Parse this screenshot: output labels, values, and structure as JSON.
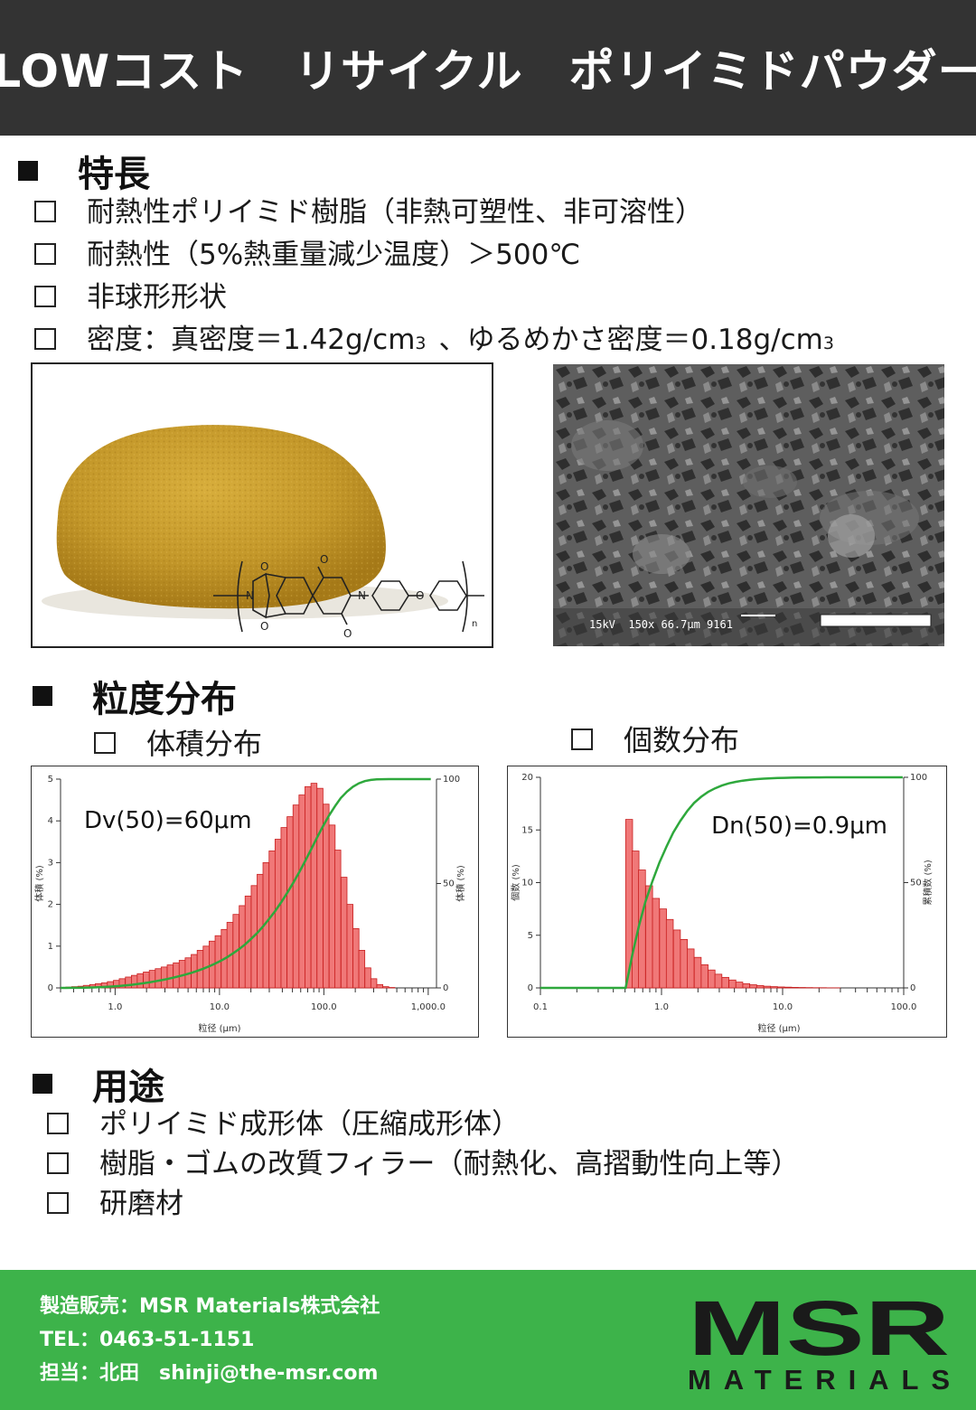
{
  "header": {
    "title": "LOWコスト　リサイクル　ポリイミドパウダー"
  },
  "features": {
    "heading": "特長",
    "items": [
      "耐熱性ポリイミド樹脂（非熱可塑性、非可溶性）",
      "耐熱性（5%熱重量減少温度）＞500℃",
      "非球形形状"
    ],
    "density_prefix": "密度：真密度＝1.42g/cm",
    "density_mid": "、ゆるめかさ密度＝0.18g/cm",
    "density_sup": "3"
  },
  "images": {
    "structure": {
      "subscript": "n",
      "atoms": {
        "n": "N",
        "o": "O"
      }
    },
    "sem": {
      "caption": "15kV  150x 66.7μm 9161"
    }
  },
  "distribution": {
    "heading": "粒度分布",
    "volume_label": "体積分布",
    "number_label": "個数分布"
  },
  "chart_data": [
    {
      "type": "bar",
      "annotation": "Dv(50)=60μm",
      "xlabel": "粒径 (μm)",
      "ylabel": "体積 (%)",
      "y2label": "体積 (%)",
      "xscale": "log",
      "xlim": [
        0.3,
        1200
      ],
      "ylim": [
        0,
        5
      ],
      "y2lim": [
        0,
        100
      ],
      "x_ticks": [
        "1.0",
        "10.0",
        "100.0",
        "1,000.0"
      ],
      "y_ticks": [
        "0",
        "1",
        "2",
        "3",
        "4",
        "5"
      ],
      "y2_ticks": [
        "0",
        "50",
        "100"
      ],
      "x": [
        0.36,
        0.41,
        0.47,
        0.53,
        0.61,
        0.69,
        0.79,
        0.9,
        1.03,
        1.17,
        1.34,
        1.53,
        1.74,
        1.99,
        2.27,
        2.59,
        2.95,
        3.37,
        3.85,
        4.39,
        5.01,
        5.72,
        6.53,
        7.45,
        8.5,
        9.7,
        11.1,
        12.6,
        14.4,
        16.5,
        18.8,
        21.5,
        24.5,
        27.9,
        31.9,
        36.4,
        41.5,
        47.4,
        54.1,
        61.7,
        70.4,
        80.4,
        91.8,
        105,
        120,
        136,
        156,
        178,
        203,
        231,
        264,
        301,
        344,
        392,
        448,
        511,
        584,
        666,
        760,
        868,
        990
      ],
      "values": [
        0.02,
        0.03,
        0.04,
        0.06,
        0.08,
        0.1,
        0.12,
        0.15,
        0.18,
        0.22,
        0.26,
        0.3,
        0.34,
        0.38,
        0.42,
        0.46,
        0.5,
        0.55,
        0.6,
        0.66,
        0.72,
        0.8,
        0.9,
        1.0,
        1.12,
        1.25,
        1.4,
        1.57,
        1.76,
        1.97,
        2.2,
        2.45,
        2.72,
        3.0,
        3.28,
        3.56,
        3.84,
        4.1,
        4.38,
        4.62,
        4.82,
        4.9,
        4.78,
        4.4,
        3.9,
        3.3,
        2.65,
        2.0,
        1.42,
        0.9,
        0.48,
        0.22,
        0.08,
        0.03,
        0.01,
        0.0,
        0.0,
        0.0,
        0.0,
        0.0,
        0.0
      ]
    },
    {
      "type": "bar",
      "annotation": "Dn(50)=0.9μm",
      "xlabel": "粒径 (μm)",
      "ylabel": "個数 (%)",
      "y2label": "累積数 (%)",
      "xscale": "log",
      "xlim": [
        0.1,
        100
      ],
      "ylim": [
        0,
        20
      ],
      "y2lim": [
        0,
        100
      ],
      "x_ticks": [
        "0.1",
        "1.0",
        "10.0",
        "100.0"
      ],
      "y_ticks": [
        "0",
        "5",
        "10",
        "15",
        "20"
      ],
      "y2_ticks": [
        "0",
        "50",
        "100"
      ],
      "x": [
        0.54,
        0.61,
        0.69,
        0.79,
        0.9,
        1.03,
        1.17,
        1.34,
        1.53,
        1.74,
        1.99,
        2.27,
        2.59,
        2.95,
        3.37,
        3.85,
        4.39,
        5.01,
        5.72,
        6.53,
        7.45,
        8.5,
        9.7,
        11.1,
        12.6,
        14.4,
        16.5,
        18.8,
        21.5,
        24.5,
        27.9,
        31.9,
        36.4,
        41.5,
        47.4,
        54.1,
        61.7,
        70.4,
        80.4,
        91.8
      ],
      "values": [
        16.0,
        13.0,
        11.2,
        9.7,
        8.5,
        7.5,
        6.5,
        5.5,
        4.6,
        3.7,
        2.9,
        2.2,
        1.7,
        1.3,
        1.0,
        0.75,
        0.55,
        0.4,
        0.3,
        0.22,
        0.16,
        0.12,
        0.09,
        0.07,
        0.05,
        0.04,
        0.03,
        0.02,
        0.02,
        0.01,
        0.01,
        0.0,
        0.0,
        0.0,
        0.0,
        0.0,
        0.0,
        0.0,
        0.0,
        0.0
      ]
    }
  ],
  "applications": {
    "heading": "用途",
    "items": [
      "ポリイミド成形体（圧縮成形体）",
      "樹脂・ゴムの改質フィラー（耐熱化、高摺動性向上等）",
      "研磨材"
    ]
  },
  "footer": {
    "seller": "製造販売：MSR Materials株式会社",
    "tel": "TEL：0463-51-1151",
    "contact": "担当：北田　shinji@the-msr.com",
    "logo_main": "MSR",
    "logo_sub": "MATERIALS"
  },
  "colors": {
    "header_bg": "#333333",
    "footer_bg": "#3db34a",
    "bar_fill": "#f07878",
    "bar_stroke": "#c81e1e",
    "curve": "#2ea83c",
    "powder": "#c8a030"
  }
}
